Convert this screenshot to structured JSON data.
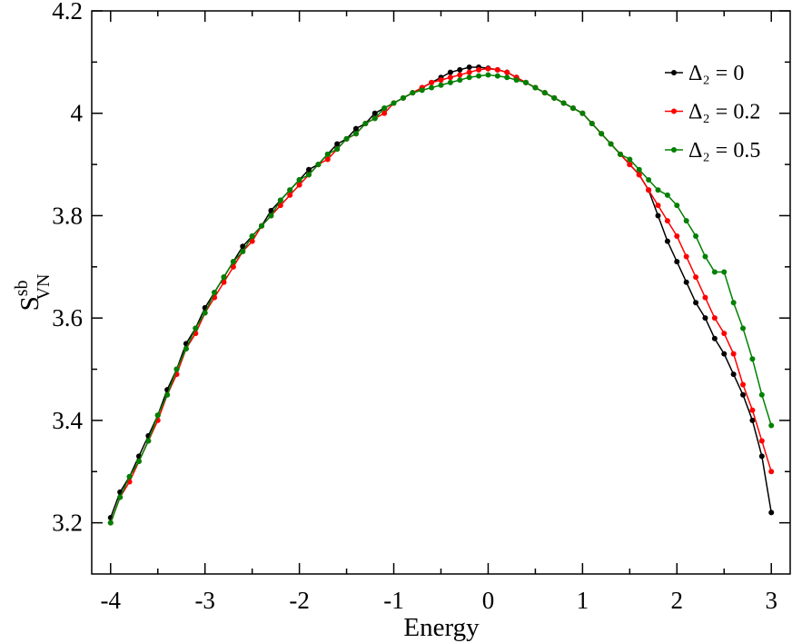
{
  "chart_data": {
    "type": "line",
    "xlabel": "Energy",
    "ylabel": {
      "main": "S",
      "sup": "sb",
      "sub": "VN"
    },
    "x": [
      -4.0,
      -3.9,
      -3.8,
      -3.7,
      -3.6,
      -3.5,
      -3.4,
      -3.3,
      -3.2,
      -3.1,
      -3.0,
      -2.9,
      -2.8,
      -2.7,
      -2.6,
      -2.5,
      -2.4,
      -2.3,
      -2.2,
      -2.1,
      -2.0,
      -1.9,
      -1.8,
      -1.7,
      -1.6,
      -1.5,
      -1.4,
      -1.3,
      -1.2,
      -1.1,
      -1.0,
      -0.9,
      -0.8,
      -0.7,
      -0.6,
      -0.5,
      -0.4,
      -0.3,
      -0.2,
      -0.1,
      0.0,
      0.1,
      0.2,
      0.3,
      0.4,
      0.5,
      0.6,
      0.7,
      0.8,
      0.9,
      1.0,
      1.1,
      1.2,
      1.3,
      1.4,
      1.5,
      1.6,
      1.7,
      1.8,
      1.9,
      2.0,
      2.1,
      2.2,
      2.3,
      2.4,
      2.5,
      2.6,
      2.7,
      2.8,
      2.9,
      3.0
    ],
    "series": [
      {
        "name": "Δ₂ = 0",
        "color": "#000000",
        "values": [
          3.21,
          3.26,
          3.29,
          3.33,
          3.37,
          3.41,
          3.46,
          3.5,
          3.55,
          3.58,
          3.62,
          3.65,
          3.68,
          3.71,
          3.74,
          3.76,
          3.78,
          3.81,
          3.83,
          3.85,
          3.87,
          3.89,
          3.9,
          3.92,
          3.94,
          3.95,
          3.97,
          3.98,
          4.0,
          4.01,
          4.02,
          4.03,
          4.04,
          4.05,
          4.06,
          4.07,
          4.08,
          4.085,
          4.09,
          4.09,
          4.088,
          4.085,
          4.08,
          4.07,
          4.06,
          4.05,
          4.04,
          4.03,
          4.02,
          4.01,
          4.0,
          3.98,
          3.96,
          3.94,
          3.92,
          3.9,
          3.88,
          3.85,
          3.8,
          3.75,
          3.71,
          3.67,
          3.63,
          3.6,
          3.56,
          3.53,
          3.49,
          3.45,
          3.4,
          3.33,
          3.22
        ]
      },
      {
        "name": "Δ₂ = 0.2",
        "color": "#ff0000",
        "values": [
          3.2,
          3.25,
          3.28,
          3.32,
          3.36,
          3.4,
          3.45,
          3.49,
          3.54,
          3.57,
          3.61,
          3.64,
          3.67,
          3.7,
          3.73,
          3.75,
          3.78,
          3.8,
          3.82,
          3.84,
          3.86,
          3.88,
          3.9,
          3.91,
          3.93,
          3.95,
          3.96,
          3.98,
          3.99,
          4.0,
          4.02,
          4.03,
          4.04,
          4.05,
          4.06,
          4.065,
          4.07,
          4.075,
          4.08,
          4.085,
          4.087,
          4.085,
          4.08,
          4.07,
          4.06,
          4.05,
          4.04,
          4.03,
          4.02,
          4.01,
          4.0,
          3.98,
          3.96,
          3.94,
          3.92,
          3.9,
          3.88,
          3.85,
          3.82,
          3.79,
          3.76,
          3.72,
          3.68,
          3.64,
          3.6,
          3.57,
          3.53,
          3.47,
          3.42,
          3.36,
          3.3
        ]
      },
      {
        "name": "Δ₂ = 0.5",
        "color": "#008000",
        "values": [
          3.2,
          3.25,
          3.29,
          3.32,
          3.36,
          3.41,
          3.45,
          3.5,
          3.54,
          3.58,
          3.61,
          3.65,
          3.68,
          3.71,
          3.73,
          3.76,
          3.78,
          3.8,
          3.83,
          3.85,
          3.87,
          3.88,
          3.9,
          3.92,
          3.93,
          3.95,
          3.96,
          3.98,
          3.99,
          4.01,
          4.02,
          4.03,
          4.04,
          4.045,
          4.05,
          4.055,
          4.06,
          4.065,
          4.07,
          4.073,
          4.075,
          4.073,
          4.07,
          4.065,
          4.06,
          4.05,
          4.04,
          4.03,
          4.02,
          4.01,
          4.0,
          3.98,
          3.96,
          3.94,
          3.92,
          3.91,
          3.89,
          3.87,
          3.85,
          3.84,
          3.82,
          3.79,
          3.76,
          3.72,
          3.69,
          3.69,
          3.63,
          3.58,
          3.52,
          3.45,
          3.39
        ]
      }
    ],
    "xlim": [
      -4.2,
      3.2
    ],
    "xticks": [
      -4,
      -3,
      -2,
      -1,
      0,
      1,
      2,
      3
    ],
    "ylim": [
      3.1,
      4.2
    ],
    "yticks": [
      3.2,
      3.4,
      3.6,
      3.8,
      4,
      4.2
    ],
    "legend": "upper right"
  }
}
